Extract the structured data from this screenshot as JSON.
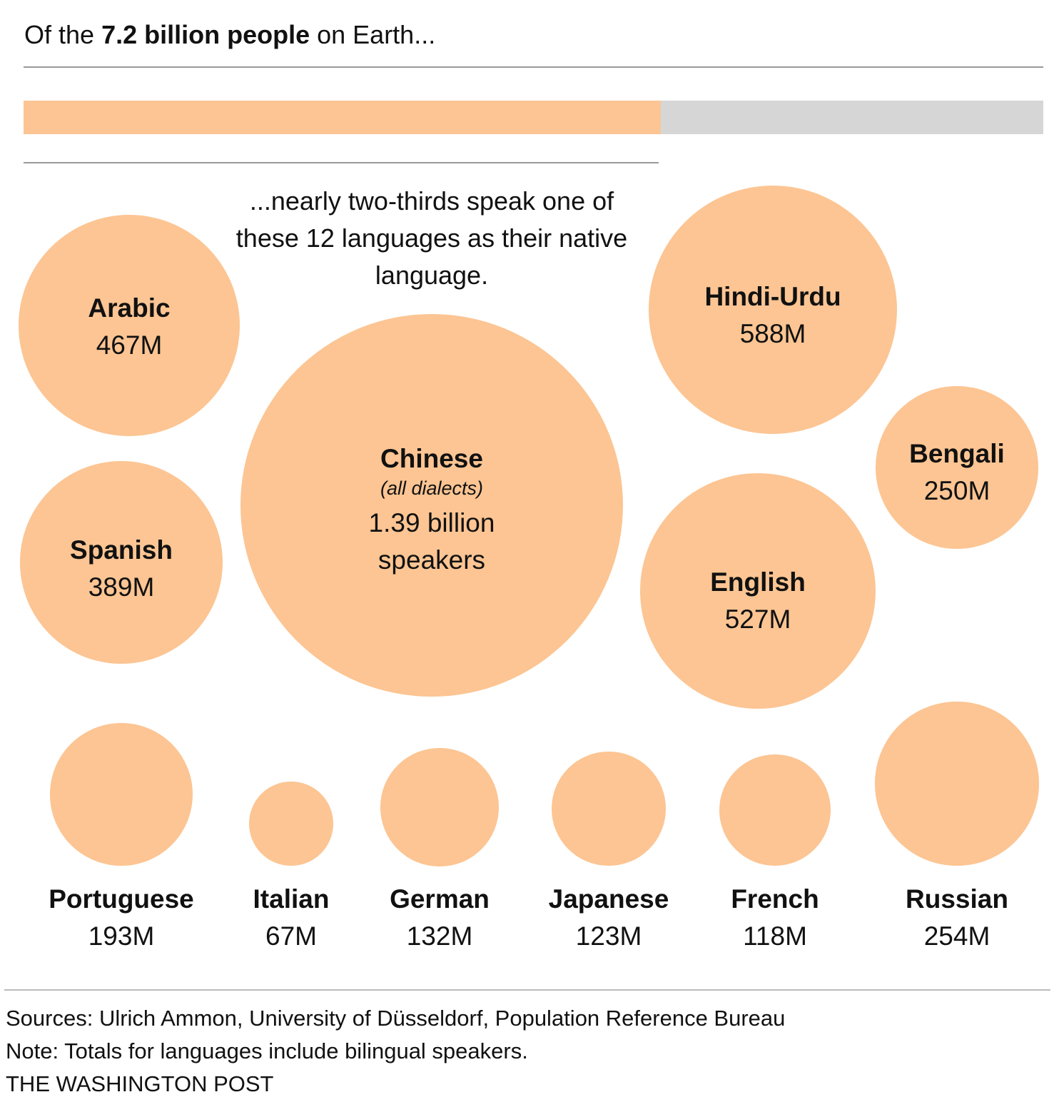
{
  "header": {
    "title_pre": "Of the ",
    "title_bold": "7.2 billion people",
    "title_post": " on Earth..."
  },
  "annotation": "...nearly two-thirds speak one of these 12 languages as their native language.",
  "colors": {
    "bubble": "#FCC593",
    "remainder": "#D6D6D6",
    "rule": "#999999"
  },
  "chart_data": {
    "type": "bubble",
    "world_population_billions": 7.2,
    "share_native_top12": 0.625,
    "unit": "millions of native speakers",
    "series": [
      {
        "name": "Chinese",
        "sub": "(all dialects)",
        "value": 1390,
        "label": "1.39 billion",
        "label2": "speakers"
      },
      {
        "name": "Hindi-Urdu",
        "value": 588,
        "label": "588M"
      },
      {
        "name": "English",
        "value": 527,
        "label": "527M"
      },
      {
        "name": "Arabic",
        "value": 467,
        "label": "467M"
      },
      {
        "name": "Spanish",
        "value": 389,
        "label": "389M"
      },
      {
        "name": "Russian",
        "value": 254,
        "label": "254M"
      },
      {
        "name": "Bengali",
        "value": 250,
        "label": "250M"
      },
      {
        "name": "Portuguese",
        "value": 193,
        "label": "193M"
      },
      {
        "name": "German",
        "value": 132,
        "label": "132M"
      },
      {
        "name": "Japanese",
        "value": 123,
        "label": "123M"
      },
      {
        "name": "French",
        "value": 118,
        "label": "118M"
      },
      {
        "name": "Italian",
        "value": 67,
        "label": "67M"
      }
    ]
  },
  "footer": {
    "sources": "Sources: Ulrich Ammon, University of Düsseldorf, Population Reference Bureau",
    "note": "Note: Totals for languages include bilingual speakers.",
    "credit": "THE WASHINGTON POST"
  }
}
